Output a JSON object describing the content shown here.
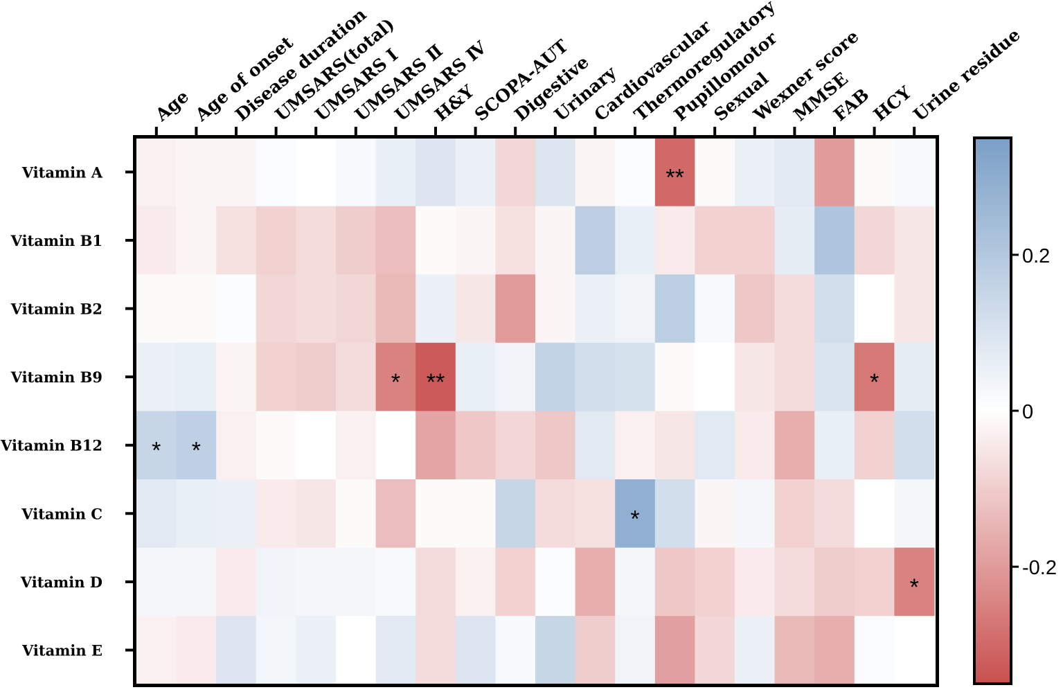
{
  "chart_data": {
    "type": "heatmap",
    "title": "",
    "columns": [
      "Age",
      "Age of onset",
      "Disease duration",
      "UMSARS(total)",
      "UMSARS Ⅰ",
      "UMSARS Ⅱ",
      "UMSARS Ⅳ",
      "H&Y",
      "SCOPA-AUT",
      "Digestive",
      "Urinary",
      "Cardiovascular",
      "Thermoregulatory",
      "Pupillomotor",
      "Sexual",
      "Wexner score",
      "MMSE",
      "FAB",
      "HCY",
      "Urine residue"
    ],
    "rows": [
      "Vitamin A",
      "Vitamin B1",
      "Vitamin B2",
      "Vitamin B9",
      "Vitamin B12",
      "Vitamin C",
      "Vitamin D",
      "Vitamin E"
    ],
    "values": [
      [
        -0.03,
        -0.02,
        -0.02,
        0.01,
        0.0,
        0.02,
        0.06,
        0.09,
        0.05,
        -0.08,
        0.09,
        -0.02,
        0.01,
        -0.3,
        -0.01,
        0.05,
        0.08,
        -0.2,
        -0.01,
        0.02
      ],
      [
        -0.04,
        -0.02,
        -0.06,
        -0.09,
        -0.07,
        -0.1,
        -0.13,
        -0.01,
        -0.02,
        -0.06,
        -0.02,
        0.18,
        0.06,
        -0.04,
        -0.09,
        -0.09,
        0.07,
        0.21,
        -0.08,
        -0.05
      ],
      [
        -0.01,
        -0.01,
        0.01,
        -0.08,
        -0.07,
        -0.08,
        -0.14,
        0.05,
        -0.05,
        -0.2,
        -0.02,
        0.05,
        0.04,
        0.18,
        0.02,
        -0.11,
        -0.07,
        0.12,
        0.0,
        -0.05
      ],
      [
        0.05,
        0.06,
        -0.02,
        -0.09,
        -0.1,
        -0.07,
        -0.25,
        -0.33,
        0.06,
        0.04,
        0.16,
        0.12,
        0.11,
        -0.01,
        0.0,
        -0.05,
        -0.07,
        0.1,
        -0.27,
        0.07
      ],
      [
        0.15,
        0.17,
        -0.03,
        -0.01,
        0.0,
        -0.03,
        0.0,
        -0.18,
        -0.11,
        -0.08,
        -0.11,
        0.08,
        -0.03,
        -0.05,
        0.08,
        -0.04,
        -0.16,
        0.06,
        -0.09,
        0.12
      ],
      [
        0.08,
        0.06,
        0.05,
        -0.04,
        -0.05,
        -0.01,
        -0.13,
        -0.01,
        -0.01,
        0.15,
        -0.07,
        -0.06,
        0.29,
        0.12,
        -0.02,
        0.03,
        -0.09,
        -0.07,
        0.0,
        0.03
      ],
      [
        0.03,
        0.03,
        -0.04,
        0.04,
        0.03,
        0.03,
        0.02,
        -0.07,
        -0.03,
        -0.09,
        0.01,
        -0.16,
        0.03,
        -0.11,
        -0.09,
        -0.04,
        -0.07,
        -0.1,
        -0.09,
        -0.25
      ],
      [
        -0.03,
        -0.04,
        0.09,
        0.03,
        0.05,
        0.0,
        0.08,
        -0.07,
        0.09,
        0.02,
        0.15,
        -0.1,
        0.04,
        -0.19,
        -0.08,
        0.05,
        -0.14,
        -0.16,
        0.01,
        0.0
      ]
    ],
    "significance": [
      {
        "row": "Vitamin A",
        "column": "Pupillomotor",
        "label": "**"
      },
      {
        "row": "Vitamin B9",
        "column": "UMSARS Ⅳ",
        "label": "*"
      },
      {
        "row": "Vitamin B9",
        "column": "H&Y",
        "label": "**"
      },
      {
        "row": "Vitamin B9",
        "column": "HCY",
        "label": "*"
      },
      {
        "row": "Vitamin B12",
        "column": "Age",
        "label": "*"
      },
      {
        "row": "Vitamin B12",
        "column": "Age of onset",
        "label": "*"
      },
      {
        "row": "Vitamin C",
        "column": "Thermoregulatory",
        "label": "*"
      },
      {
        "row": "Vitamin D",
        "column": "Urine residue",
        "label": "*"
      }
    ],
    "colorbar": {
      "range": [
        -0.35,
        0.35
      ],
      "ticks": [
        0.2,
        0,
        -0.2
      ],
      "tick_labels": [
        "0.2",
        "0",
        "-0.2"
      ],
      "positive_color": "#7a9fc6",
      "neutral_color": "#ffffff",
      "negative_color": "#c8504e"
    }
  }
}
